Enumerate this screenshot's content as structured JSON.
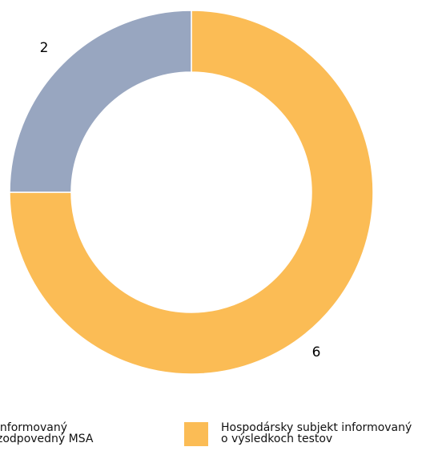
{
  "chart_data": {
    "type": "donut",
    "series": [
      {
        "name": "Hospodársky subjekt informovaný o výsledkoch testov",
        "color": "#fbbc55",
        "values": [
          6
        ]
      },
      {
        "name": "informovaný zodpovedný MSA",
        "color": "#98a6c0",
        "values": [
          2
        ]
      }
    ]
  }
}
